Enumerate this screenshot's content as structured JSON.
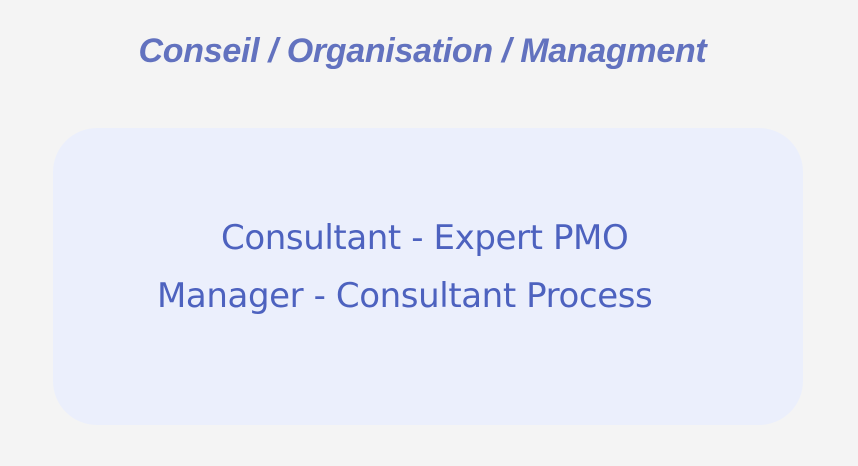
{
  "header": {
    "title": "Conseil / Organisation / Managment"
  },
  "card": {
    "roles": [
      "Consultant - Expert PMO",
      "Manager - Consultant Process"
    ]
  },
  "colors": {
    "background": "#f4f4f4",
    "title": "#6272bf",
    "card_background": "#ebeffc",
    "role_text": "#4d62bf"
  }
}
